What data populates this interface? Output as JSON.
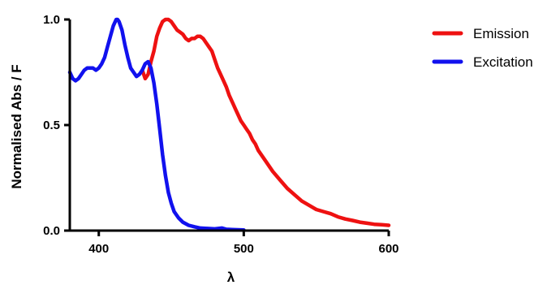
{
  "chart_data": {
    "type": "line",
    "title": "",
    "xlabel": "λ",
    "ylabel": "Normalised Abs / F",
    "xlim": [
      380,
      600
    ],
    "ylim": [
      0,
      1.0
    ],
    "x_ticks": [
      400,
      500,
      600
    ],
    "y_ticks": [
      0.0,
      0.5,
      1.0
    ],
    "x_tick_labels": [
      "400",
      "500",
      "600"
    ],
    "y_tick_labels": [
      "0.0",
      "0.5",
      "1.0"
    ],
    "grid": false,
    "legend_position": "top-right",
    "series": [
      {
        "name": "Emission",
        "color": "#ee1111",
        "points": [
          [
            430,
            0.76
          ],
          [
            432,
            0.72
          ],
          [
            434,
            0.74
          ],
          [
            436,
            0.8
          ],
          [
            438,
            0.85
          ],
          [
            440,
            0.92
          ],
          [
            442,
            0.96
          ],
          [
            444,
            0.99
          ],
          [
            446,
            1.0
          ],
          [
            448,
            1.0
          ],
          [
            450,
            0.99
          ],
          [
            452,
            0.97
          ],
          [
            454,
            0.95
          ],
          [
            456,
            0.94
          ],
          [
            458,
            0.93
          ],
          [
            460,
            0.91
          ],
          [
            462,
            0.9
          ],
          [
            464,
            0.91
          ],
          [
            466,
            0.91
          ],
          [
            468,
            0.92
          ],
          [
            470,
            0.92
          ],
          [
            472,
            0.91
          ],
          [
            474,
            0.89
          ],
          [
            476,
            0.87
          ],
          [
            478,
            0.85
          ],
          [
            480,
            0.81
          ],
          [
            482,
            0.77
          ],
          [
            484,
            0.74
          ],
          [
            486,
            0.71
          ],
          [
            488,
            0.68
          ],
          [
            490,
            0.64
          ],
          [
            492,
            0.61
          ],
          [
            494,
            0.58
          ],
          [
            496,
            0.55
          ],
          [
            498,
            0.52
          ],
          [
            500,
            0.5
          ],
          [
            502,
            0.48
          ],
          [
            504,
            0.46
          ],
          [
            506,
            0.43
          ],
          [
            508,
            0.41
          ],
          [
            510,
            0.38
          ],
          [
            515,
            0.33
          ],
          [
            520,
            0.28
          ],
          [
            525,
            0.24
          ],
          [
            530,
            0.2
          ],
          [
            535,
            0.17
          ],
          [
            540,
            0.14
          ],
          [
            545,
            0.12
          ],
          [
            550,
            0.1
          ],
          [
            555,
            0.09
          ],
          [
            560,
            0.08
          ],
          [
            565,
            0.065
          ],
          [
            570,
            0.055
          ],
          [
            575,
            0.048
          ],
          [
            580,
            0.04
          ],
          [
            585,
            0.035
          ],
          [
            590,
            0.03
          ],
          [
            595,
            0.028
          ],
          [
            600,
            0.025
          ]
        ]
      },
      {
        "name": "Excitation",
        "color": "#1111ee",
        "points": [
          [
            380,
            0.75
          ],
          [
            382,
            0.72
          ],
          [
            384,
            0.71
          ],
          [
            386,
            0.72
          ],
          [
            388,
            0.74
          ],
          [
            390,
            0.76
          ],
          [
            392,
            0.77
          ],
          [
            394,
            0.77
          ],
          [
            396,
            0.77
          ],
          [
            398,
            0.76
          ],
          [
            400,
            0.77
          ],
          [
            402,
            0.79
          ],
          [
            404,
            0.82
          ],
          [
            406,
            0.87
          ],
          [
            408,
            0.92
          ],
          [
            410,
            0.97
          ],
          [
            412,
            1.0
          ],
          [
            413,
            1.0
          ],
          [
            414,
            0.99
          ],
          [
            416,
            0.95
          ],
          [
            418,
            0.88
          ],
          [
            420,
            0.82
          ],
          [
            422,
            0.77
          ],
          [
            424,
            0.75
          ],
          [
            426,
            0.73
          ],
          [
            428,
            0.74
          ],
          [
            430,
            0.76
          ],
          [
            432,
            0.79
          ],
          [
            434,
            0.8
          ],
          [
            436,
            0.77
          ],
          [
            438,
            0.7
          ],
          [
            440,
            0.6
          ],
          [
            442,
            0.48
          ],
          [
            444,
            0.36
          ],
          [
            446,
            0.26
          ],
          [
            448,
            0.18
          ],
          [
            450,
            0.13
          ],
          [
            452,
            0.09
          ],
          [
            455,
            0.06
          ],
          [
            458,
            0.04
          ],
          [
            462,
            0.025
          ],
          [
            466,
            0.018
          ],
          [
            470,
            0.012
          ],
          [
            475,
            0.01
          ],
          [
            480,
            0.008
          ],
          [
            485,
            0.012
          ],
          [
            488,
            0.006
          ],
          [
            492,
            0.005
          ],
          [
            496,
            0.004
          ],
          [
            500,
            0.003
          ]
        ]
      }
    ]
  }
}
